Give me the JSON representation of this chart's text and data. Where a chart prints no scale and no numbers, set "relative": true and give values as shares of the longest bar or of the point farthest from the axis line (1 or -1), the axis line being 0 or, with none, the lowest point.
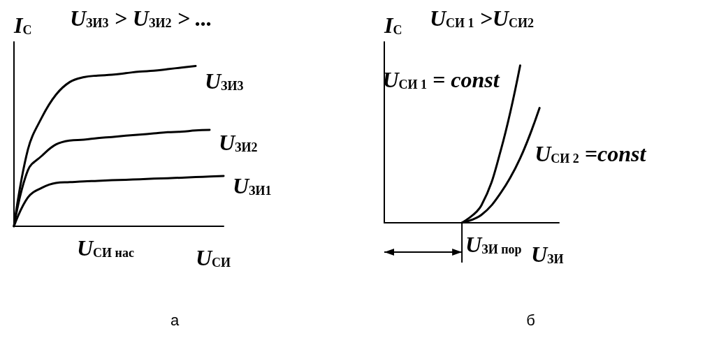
{
  "chart_data": [
    {
      "type": "line",
      "title": "U$_{ЗИ3}$ > U$_{ЗИ2}$ > ...",
      "xlabel": "U$_{СИ}$",
      "ylabel": "I$_{С}$",
      "relative": true,
      "marker": "none",
      "line_style": "solid",
      "categories": [
        null,
        null,
        null,
        null,
        null,
        null,
        null,
        null,
        null,
        null,
        null,
        null,
        null,
        null,
        null,
        null
      ],
      "series": [
        {
          "name": "U$_{ЗИ3}$",
          "color": "#000000",
          "values": [
            0,
            0.48,
            0.68,
            0.82,
            0.9,
            0.93,
            0.94,
            0.945,
            0.955,
            0.965,
            0.97,
            0.98,
            0.99,
            1,
            null,
            null
          ]
        },
        {
          "name": "U$_{ЗИ2}$",
          "color": "#000000",
          "values": [
            0,
            0.35,
            0.44,
            0.51,
            0.535,
            0.54,
            0.55,
            0.557,
            0.565,
            0.572,
            0.579,
            0.587,
            0.59,
            0.598,
            0.601,
            null
          ]
        },
        {
          "name": "U$_{ЗИ1}$",
          "color": "#000000",
          "values": [
            0,
            0.18,
            0.24,
            0.27,
            0.275,
            0.28,
            0.283,
            0.287,
            0.29,
            0.293,
            0.297,
            0.3,
            0.303,
            0.307,
            0.31,
            0.314
          ]
        }
      ],
      "annotations": [
        "U$_{СИ нас}$",
        "а"
      ]
    },
    {
      "type": "line",
      "title": "U$_{СИ 1}$ >U$_{СИ2}$",
      "xlabel": "U$_{ЗИ}$",
      "ylabel": "I$_{С}$",
      "relative": true,
      "marker": "none",
      "line_style": "solid",
      "categories": [
        null,
        null,
        null,
        null,
        null,
        null,
        null,
        null,
        null,
        null
      ],
      "series": [
        {
          "name": "U$_{СИ 1}$ = const",
          "color": "#000000",
          "values": [
            null,
            null,
            null,
            null,
            0,
            0.11,
            0.46,
            1,
            null,
            null
          ]
        },
        {
          "name": "U$_{СИ 2}$ =const",
          "color": "#000000",
          "values": [
            null,
            null,
            null,
            null,
            0,
            0.05,
            0.19,
            0.41,
            0.73,
            null
          ]
        }
      ],
      "annotations": [
        "U$_{ЗИ пор}$",
        "б"
      ]
    }
  ]
}
